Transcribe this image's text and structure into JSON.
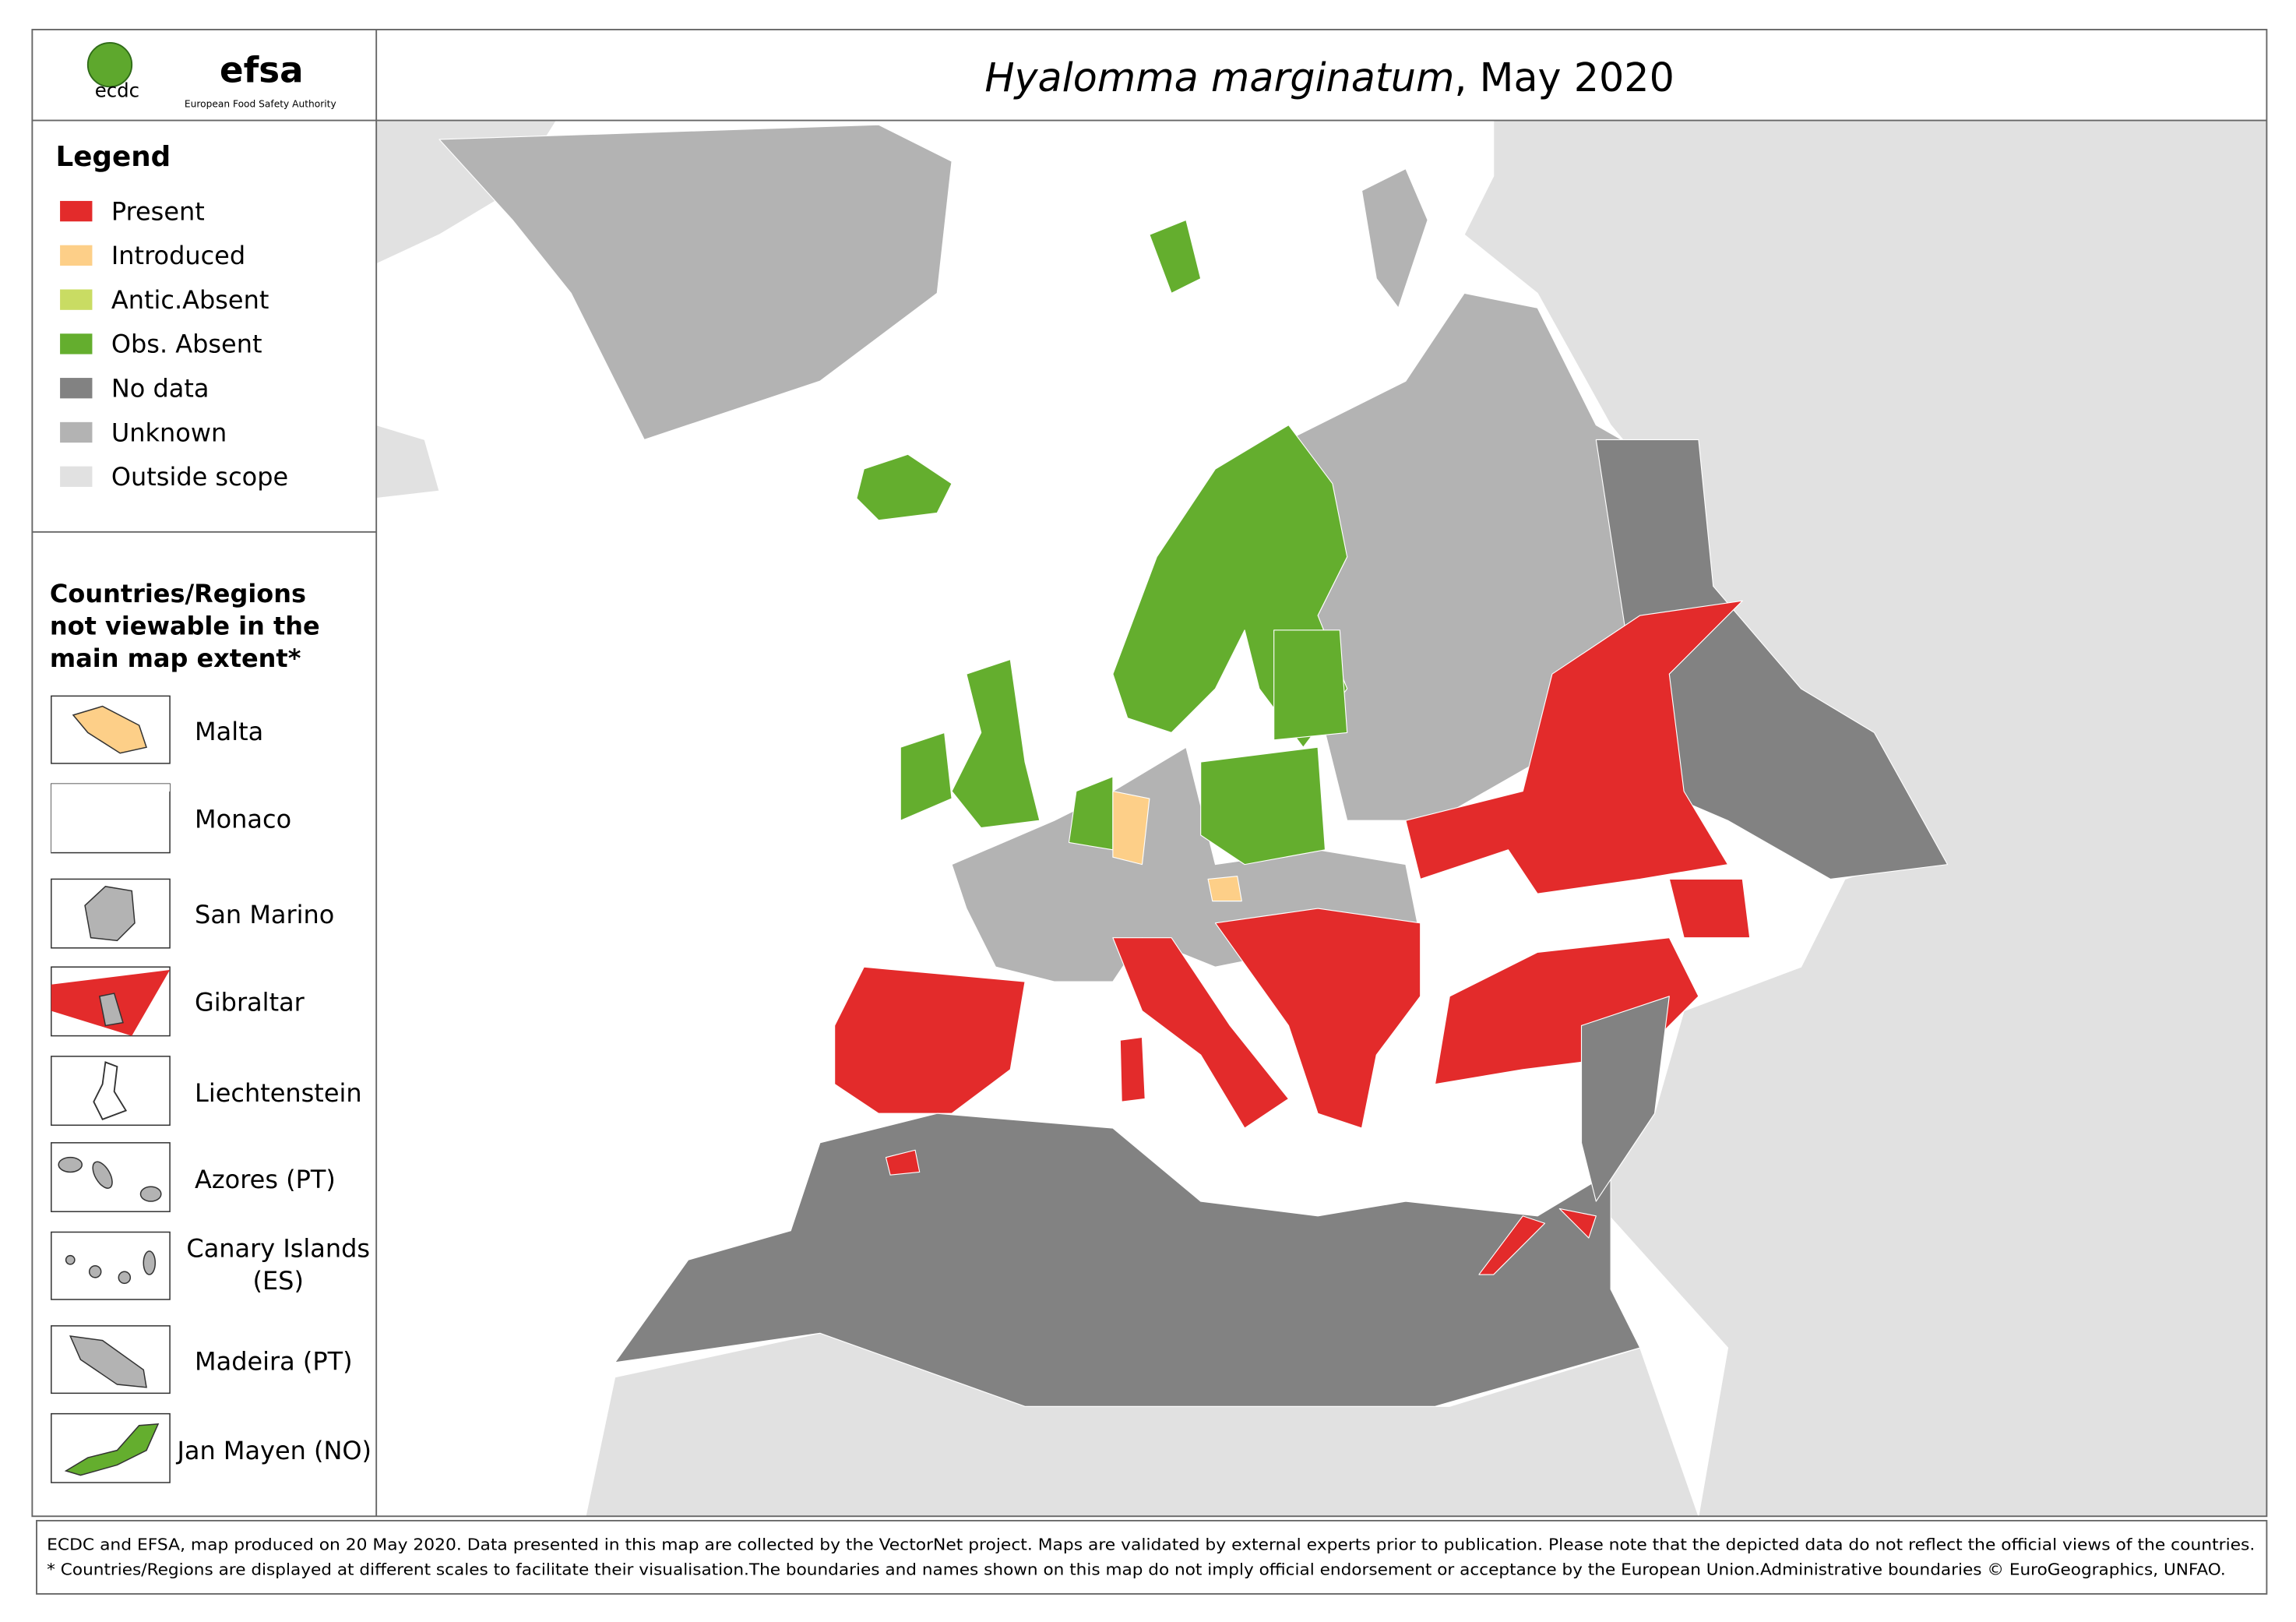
{
  "header": {
    "title_italic": "Hyalomma marginatum",
    "title_rest": ", May 2020",
    "logo_ecdc": "ecdc",
    "logo_efsa": "efsa",
    "logo_efsa_sub": "European Food Safety Authority"
  },
  "legend": {
    "title": "Legend",
    "items": [
      {
        "label": "Present",
        "color": "#e32b2b"
      },
      {
        "label": "Introduced",
        "color": "#fdcf88"
      },
      {
        "label": "Antic.Absent",
        "color": "#c9dc63"
      },
      {
        "label": "Obs. Absent",
        "color": "#64ae2e"
      },
      {
        "label": "No data",
        "color": "#828282"
      },
      {
        "label": "Unknown",
        "color": "#b3b3b3"
      },
      {
        "label": "Outside scope",
        "color": "#e1e1e1"
      }
    ]
  },
  "insets": {
    "title_lines": [
      "Countries/Regions",
      "not viewable in the",
      "main map extent*"
    ],
    "items": [
      {
        "lines": [
          "Malta"
        ]
      },
      {
        "lines": [
          "Monaco"
        ]
      },
      {
        "lines": [
          "San Marino"
        ]
      },
      {
        "lines": [
          "Gibraltar"
        ]
      },
      {
        "lines": [
          "Liechtenstein"
        ]
      },
      {
        "lines": [
          "Azores (PT)"
        ]
      },
      {
        "lines": [
          "Canary Islands",
          "(ES)"
        ]
      },
      {
        "lines": [
          "Madeira (PT)"
        ]
      },
      {
        "lines": [
          "Jan Mayen (NO)"
        ]
      }
    ]
  },
  "footer": {
    "lines": [
      "ECDC and EFSA, map produced on 20 May 2020. Data presented in this map are collected by the VectorNet project. Maps are validated by external experts prior to publication. Please note that the depicted data do not reflect the official views of the countries.",
      "* Countries/Regions are displayed at different scales to facilitate their visualisation.The boundaries and names shown on this map do not imply official endorsement or acceptance by the European Union.Administrative boundaries © EuroGeographics, UNFAO."
    ]
  }
}
